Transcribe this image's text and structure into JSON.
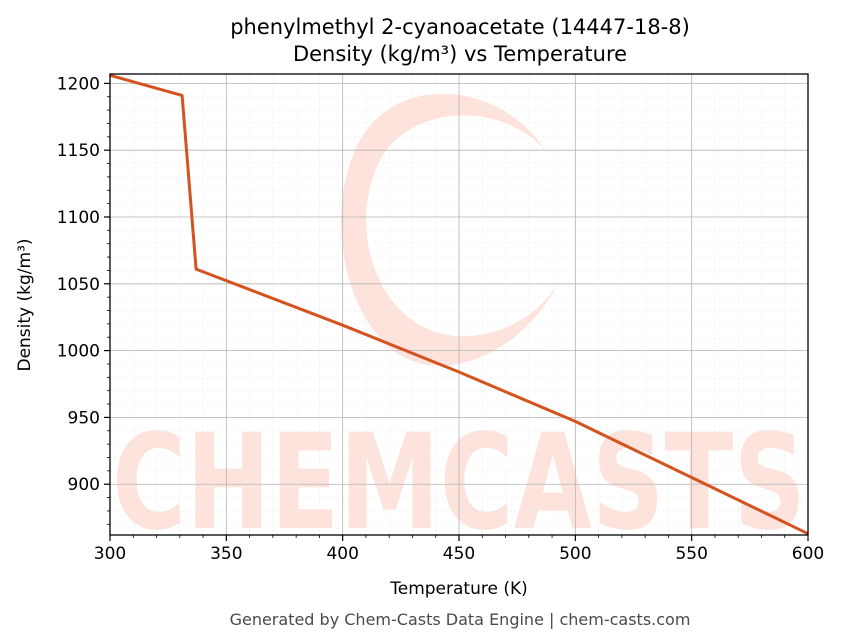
{
  "chart_data": {
    "type": "line",
    "title": "phenylmethyl 2-cyanoacetate (14447-18-8)",
    "subtitle": "Density (kg/m³) vs Temperature",
    "xlabel": "Temperature (K)",
    "ylabel": "Density (kg/m³)",
    "xlim": [
      300,
      600
    ],
    "ylim": [
      862,
      1207
    ],
    "x_ticks": [
      300,
      350,
      400,
      450,
      500,
      550,
      600
    ],
    "y_ticks": [
      900,
      950,
      1000,
      1050,
      1100,
      1150,
      1200
    ],
    "grid": true,
    "series": [
      {
        "color": "#d4531f",
        "x": [
          300,
          331,
          337,
          400,
          450,
          500,
          550,
          600
        ],
        "y": [
          1206,
          1191,
          1061,
          1019,
          984,
          947,
          905,
          863
        ]
      }
    ]
  },
  "watermark": {
    "text": "CHEMCASTS",
    "color": "#fde3dc"
  },
  "footer": "Generated by Chem-Casts Data Engine | chem-casts.com"
}
